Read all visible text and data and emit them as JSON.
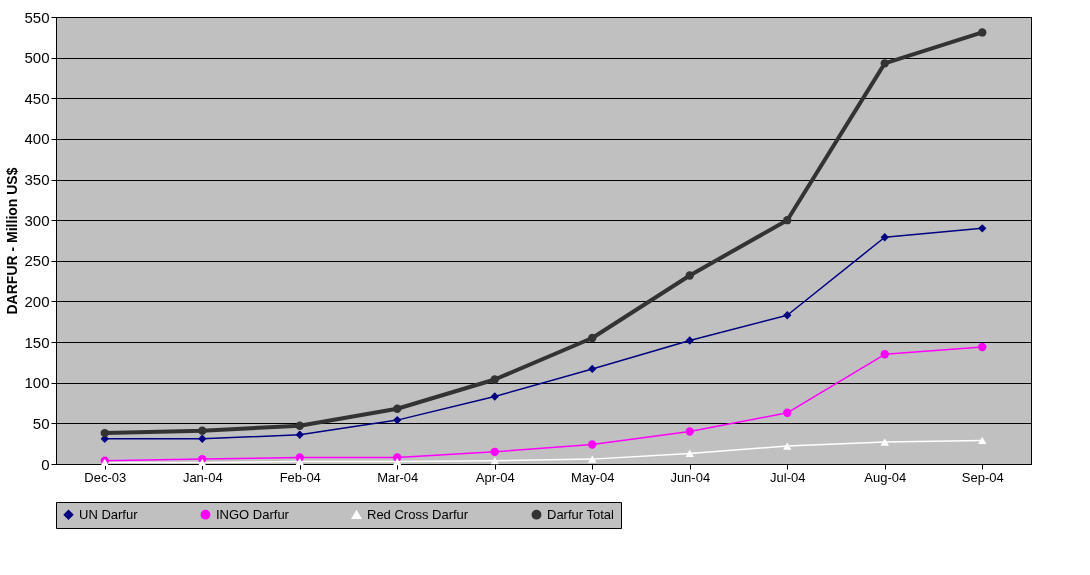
{
  "chart_data": {
    "type": "line",
    "ylabel": "DARFUR - Million US$",
    "categories": [
      "Dec-03",
      "Jan-04",
      "Feb-04",
      "Mar-04",
      "Apr-04",
      "May-04",
      "Jun-04",
      "Jul-04",
      "Aug-04",
      "Sep-04"
    ],
    "series": [
      {
        "name": "UN Darfur",
        "color": "#000080",
        "marker": "diamond",
        "values": [
          31,
          31,
          36,
          54,
          83,
          117,
          152,
          183,
          279,
          290
        ]
      },
      {
        "name": "INGO Darfur",
        "color": "#ff00ff",
        "marker": "circle",
        "values": [
          4,
          6,
          8,
          8,
          15,
          24,
          40,
          63,
          135,
          144
        ]
      },
      {
        "name": "Red Cross Darfur",
        "color": "#ffffff",
        "marker": "triangle",
        "values": [
          2,
          2,
          3,
          3,
          4,
          6,
          13,
          22,
          27,
          29
        ]
      },
      {
        "name": "Darfur Total",
        "color": "#333333",
        "marker": "circle",
        "values": [
          38,
          41,
          47,
          68,
          104,
          155,
          232,
          300,
          493,
          531
        ]
      }
    ],
    "ylim": [
      0,
      550
    ],
    "yticks": [
      0,
      50,
      100,
      150,
      200,
      250,
      300,
      350,
      400,
      450,
      500,
      550
    ],
    "grid": "y",
    "legend": "bottom"
  }
}
